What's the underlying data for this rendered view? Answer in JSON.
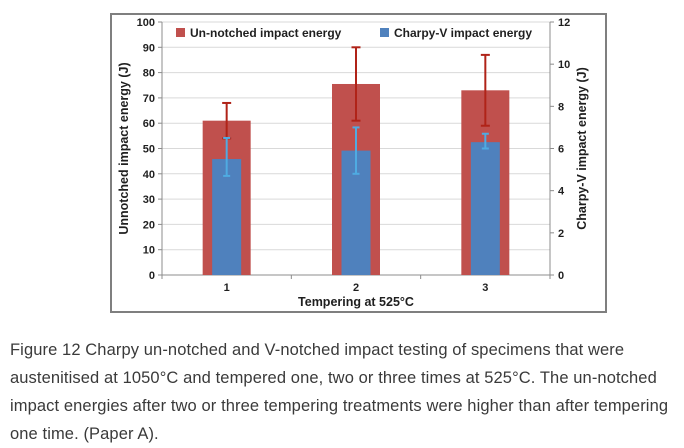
{
  "figure": {
    "caption": "Figure 12 Charpy un-notched and V-notched impact testing of specimens that were austenitised at 1050°C and tempered one, two or three times at 525°C. The un-notched impact energies after two or three tempering treatments were higher than after tempering one time. (Paper A)."
  },
  "chart_data": {
    "type": "bar",
    "categories": [
      "1",
      "2",
      "3"
    ],
    "xlabel": "Tempering at 525°C",
    "grid": true,
    "legend_position": "top",
    "left_axis": {
      "label": "Unnotched impact energy (J)",
      "min": 0,
      "max": 100,
      "step": 10
    },
    "right_axis": {
      "label": "Charpy-V impact energy (J)",
      "min": 0,
      "max": 12,
      "step": 2
    },
    "series": [
      {
        "name": "Un-notched impact energy",
        "axis": "left",
        "color": "#c0504d",
        "error_color": "#b02318",
        "values": [
          61,
          75.5,
          73
        ],
        "error_low": [
          54,
          61,
          59
        ],
        "error_high": [
          68,
          90,
          87
        ]
      },
      {
        "name": "Charpy-V impact energy",
        "axis": "right",
        "color": "#4f81bd",
        "error_color": "#4fabe2",
        "values": [
          5.5,
          5.9,
          6.3
        ],
        "error_low": [
          4.7,
          4.8,
          6.0
        ],
        "error_high": [
          6.5,
          7.0,
          6.7
        ]
      }
    ],
    "style": {
      "gridline_color": "#d9d9d9",
      "axis_color": "#8c8c8c",
      "text_color": "#1f1f1f"
    }
  }
}
